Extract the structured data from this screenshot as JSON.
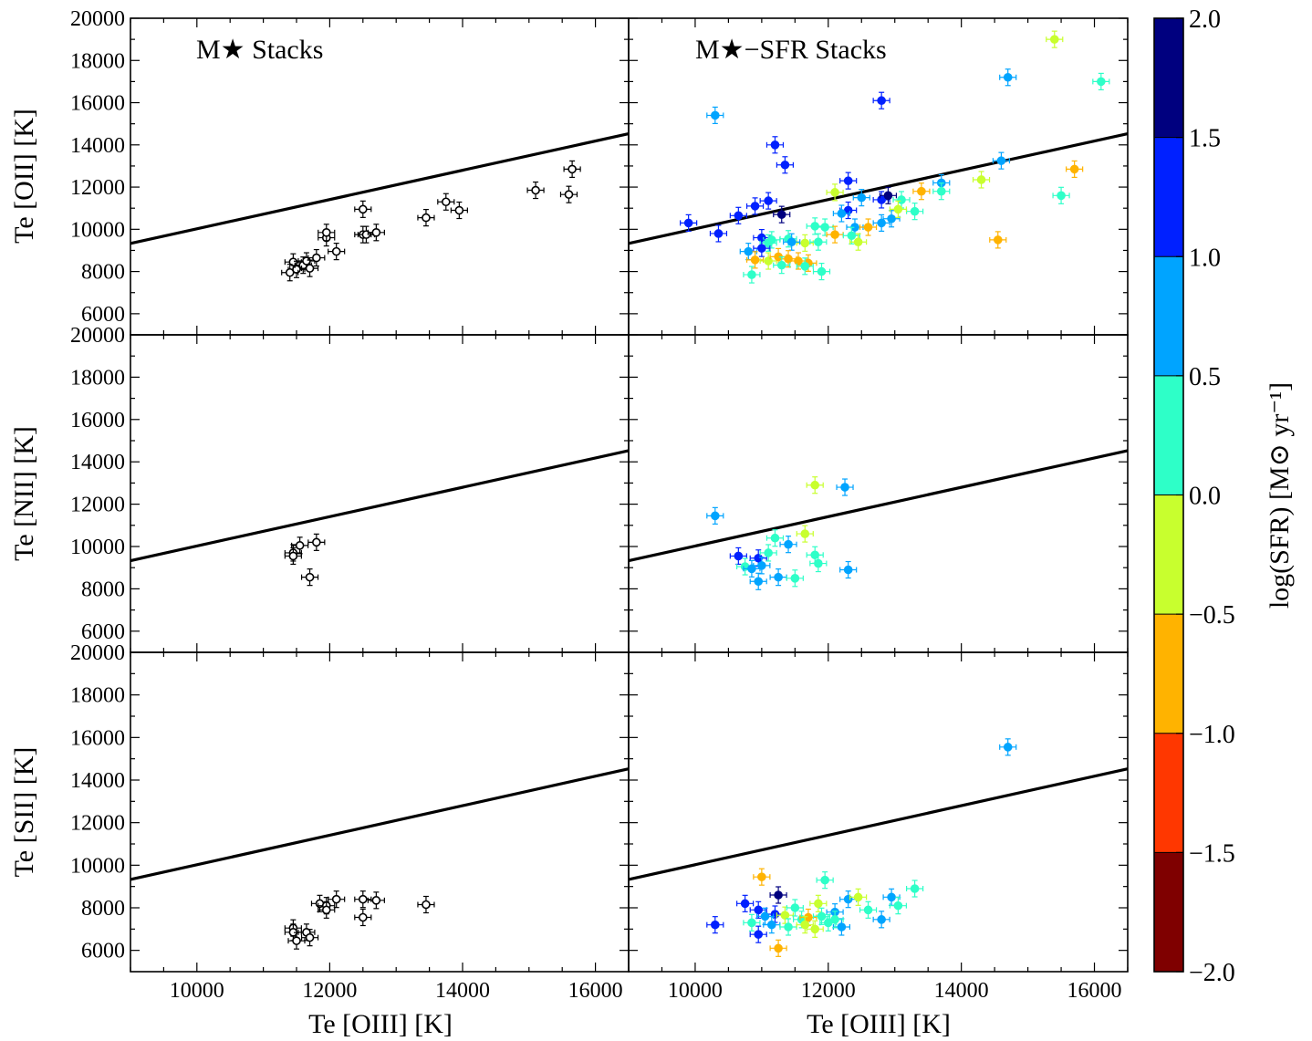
{
  "colors": {
    "accent": "#000000",
    "colormap": [
      "#7f0000",
      "#ff3700",
      "#ffb300",
      "#c8ff2e",
      "#2effc8",
      "#00a4ff",
      "#0020ff",
      "#00007f"
    ]
  },
  "panel_titles": {
    "left": "M★ Stacks",
    "right": "M★−SFR Stacks"
  },
  "colorbar": {
    "label": "log(SFR) [M⊙ yr⁻¹]",
    "range": [
      -2.0,
      2.0
    ],
    "ticks": [
      "2.0",
      "1.5",
      "1.0",
      "0.5",
      "0.0",
      "−0.5",
      "−1.0",
      "−1.5",
      "−2.0"
    ]
  },
  "chart_data": {
    "type": "scatter",
    "xlabel": "Te [OIII] [K]",
    "ylabels": [
      "Te [OII] [K]",
      "Te [NII] [K]",
      "Te [SII] [K]"
    ],
    "xlim": [
      9000,
      16500
    ],
    "ylim": [
      5000,
      20000
    ],
    "xticks": [
      10000,
      12000,
      14000,
      16000
    ],
    "yticks": [
      6000,
      8000,
      10000,
      12000,
      14000,
      16000,
      18000,
      20000
    ],
    "relation_line": [
      [
        9000,
        9330
      ],
      [
        16500,
        14530
      ]
    ],
    "panels": [
      {
        "row": "OII",
        "col": "left",
        "points": [
          [
            11450,
            8450
          ],
          [
            11500,
            8100
          ],
          [
            11600,
            8300
          ],
          [
            11650,
            8500
          ],
          [
            11400,
            7950
          ],
          [
            11700,
            8150
          ],
          [
            11800,
            8650
          ],
          [
            11950,
            9600
          ],
          [
            11950,
            9850
          ],
          [
            12100,
            8950
          ],
          [
            12500,
            10950
          ],
          [
            12500,
            9750
          ],
          [
            12550,
            9750
          ],
          [
            12700,
            9850
          ],
          [
            13450,
            10550
          ],
          [
            13750,
            11300
          ],
          [
            13950,
            10900
          ],
          [
            15100,
            11850
          ],
          [
            15600,
            11650
          ],
          [
            15650,
            12850
          ]
        ]
      },
      {
        "row": "OII",
        "col": "right",
        "points": [
          [
            15400,
            19000,
            -0.3
          ],
          [
            14700,
            17200,
            0.6
          ],
          [
            16100,
            17000,
            0.2
          ],
          [
            10300,
            15400,
            0.5
          ],
          [
            12800,
            16100,
            1.2
          ],
          [
            11200,
            14000,
            1.2
          ],
          [
            11350,
            13050,
            1.3
          ],
          [
            14600,
            13250,
            0.7
          ],
          [
            15700,
            12850,
            -0.8
          ],
          [
            14300,
            12350,
            -0.2
          ],
          [
            12300,
            12300,
            1.2
          ],
          [
            13700,
            12200,
            0.7
          ],
          [
            15500,
            11600,
            0.2
          ],
          [
            13400,
            11800,
            -0.8
          ],
          [
            13700,
            11800,
            0.3
          ],
          [
            12100,
            11750,
            -0.3
          ],
          [
            12500,
            11500,
            0.7
          ],
          [
            12800,
            11400,
            1.3
          ],
          [
            12900,
            11600,
            1.5
          ],
          [
            13100,
            11400,
            0.3
          ],
          [
            11100,
            11350,
            1.3
          ],
          [
            10900,
            11100,
            1.3
          ],
          [
            11300,
            10700,
            1.6
          ],
          [
            12300,
            10900,
            1.4
          ],
          [
            12200,
            10750,
            0.8
          ],
          [
            12800,
            10300,
            0.7
          ],
          [
            12950,
            10500,
            0.7
          ],
          [
            13300,
            10850,
            0.2
          ],
          [
            13050,
            10950,
            -0.4
          ],
          [
            9900,
            10300,
            1.3
          ],
          [
            10650,
            10650,
            1.4
          ],
          [
            12400,
            10100,
            0.5
          ],
          [
            12600,
            10100,
            -0.8
          ],
          [
            11950,
            10100,
            0.3
          ],
          [
            11800,
            10150,
            0.1
          ],
          [
            10350,
            9800,
            1.2
          ],
          [
            11000,
            9600,
            1.1
          ],
          [
            11150,
            9500,
            0.2
          ],
          [
            11100,
            9350,
            0.3
          ],
          [
            11400,
            9550,
            0.4
          ],
          [
            11650,
            9350,
            -0.3
          ],
          [
            11850,
            9400,
            0.1
          ],
          [
            12100,
            9750,
            -0.8
          ],
          [
            12350,
            9700,
            0.1
          ],
          [
            12450,
            9400,
            -0.3
          ],
          [
            10800,
            8950,
            0.6
          ],
          [
            11000,
            9100,
            1.3
          ],
          [
            11450,
            9400,
            0.6
          ],
          [
            14550,
            9500,
            -0.8
          ],
          [
            10900,
            8550,
            -0.8
          ],
          [
            11100,
            8500,
            -0.2
          ],
          [
            11250,
            8700,
            -0.8
          ],
          [
            11400,
            8600,
            -0.6
          ],
          [
            11550,
            8500,
            -0.8
          ],
          [
            11700,
            8400,
            -0.6
          ],
          [
            11300,
            8300,
            0.4
          ],
          [
            11650,
            8250,
            0.1
          ],
          [
            10850,
            7850,
            0.2
          ],
          [
            11900,
            8000,
            0.2
          ]
        ]
      },
      {
        "row": "NII",
        "col": "left",
        "points": [
          [
            11450,
            9700
          ],
          [
            11450,
            9550
          ],
          [
            11550,
            10050
          ],
          [
            11800,
            10200
          ],
          [
            11700,
            8550
          ]
        ]
      },
      {
        "row": "NII",
        "col": "right",
        "points": [
          [
            10300,
            11450,
            0.6
          ],
          [
            11800,
            12900,
            -0.2
          ],
          [
            12250,
            12800,
            0.6
          ],
          [
            11650,
            10600,
            -0.3
          ],
          [
            11200,
            10400,
            0.2
          ],
          [
            11400,
            10100,
            0.6
          ],
          [
            10650,
            9550,
            1.4
          ],
          [
            10950,
            9450,
            1.3
          ],
          [
            11100,
            9700,
            0.3
          ],
          [
            11800,
            9600,
            0.2
          ],
          [
            10750,
            9050,
            0.4
          ],
          [
            10850,
            8950,
            0.6
          ],
          [
            11000,
            9100,
            0.7
          ],
          [
            11850,
            9200,
            0.2
          ],
          [
            12300,
            8900,
            0.6
          ],
          [
            10950,
            8350,
            0.6
          ],
          [
            11250,
            8550,
            0.6
          ],
          [
            11500,
            8500,
            0.0
          ]
        ]
      },
      {
        "row": "SII",
        "col": "left",
        "points": [
          [
            11450,
            7050
          ],
          [
            11450,
            6850
          ],
          [
            11500,
            6450
          ],
          [
            11650,
            6850
          ],
          [
            11700,
            6600
          ],
          [
            11850,
            8200
          ],
          [
            11950,
            8100
          ],
          [
            11950,
            7900
          ],
          [
            12100,
            8400
          ],
          [
            12500,
            8400
          ],
          [
            12500,
            7550
          ],
          [
            12700,
            8350
          ],
          [
            13450,
            8150
          ]
        ]
      },
      {
        "row": "SII",
        "col": "right",
        "points": [
          [
            14700,
            15550,
            0.6
          ],
          [
            11000,
            9450,
            -0.8
          ],
          [
            10300,
            7200,
            1.3
          ],
          [
            10750,
            8200,
            1.3
          ],
          [
            10950,
            7900,
            1.3
          ],
          [
            10950,
            6750,
            1.4
          ],
          [
            11200,
            7700,
            1.2
          ],
          [
            11250,
            8600,
            1.7
          ],
          [
            11150,
            7200,
            0.7
          ],
          [
            11250,
            6100,
            -0.8
          ],
          [
            11350,
            7650,
            -0.5
          ],
          [
            11600,
            7450,
            0.2
          ],
          [
            11700,
            7550,
            -0.6
          ],
          [
            11850,
            8200,
            -0.2
          ],
          [
            11900,
            7600,
            0.1
          ],
          [
            11950,
            9300,
            0.2
          ],
          [
            12100,
            7800,
            0.5
          ],
          [
            12300,
            8400,
            0.5
          ],
          [
            12450,
            8500,
            -0.3
          ],
          [
            12600,
            7900,
            0.4
          ],
          [
            12800,
            7450,
            0.6
          ],
          [
            12950,
            8500,
            0.7
          ],
          [
            13050,
            8100,
            0.3
          ],
          [
            13300,
            8900,
            0.3
          ],
          [
            10850,
            7300,
            0.4
          ],
          [
            11050,
            7600,
            0.6
          ],
          [
            11400,
            7100,
            0.1
          ],
          [
            11650,
            7200,
            -0.5
          ],
          [
            12000,
            7300,
            0.3
          ],
          [
            12200,
            7100,
            0.5
          ],
          [
            11500,
            8000,
            0.2
          ],
          [
            11800,
            7000,
            -0.4
          ],
          [
            12100,
            7450,
            0.4
          ]
        ]
      }
    ]
  }
}
